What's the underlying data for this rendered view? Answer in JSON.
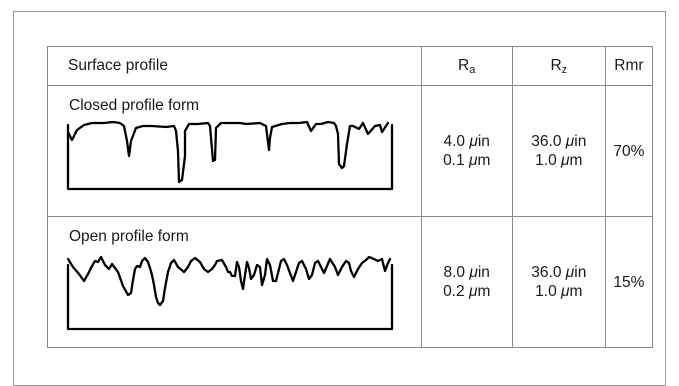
{
  "headers": {
    "profile": "Surface profile",
    "ra": "R",
    "ra_sub": "a",
    "rz": "R",
    "rz_sub": "z",
    "rmr": "Rmr"
  },
  "rows": [
    {
      "label": "Closed profile form",
      "ra_in": "4.0",
      "ra_um": "0.1",
      "rz_in": "36.0",
      "rz_um": "1.0",
      "rmr": "70%"
    },
    {
      "label": "Open profile form",
      "ra_in": "8.0",
      "ra_um": "0.2",
      "rz_in": "36.0",
      "rz_um": "1.0",
      "rmr": "15%"
    }
  ],
  "units": {
    "micro": "μ",
    "in": "in",
    "m": "m"
  }
}
